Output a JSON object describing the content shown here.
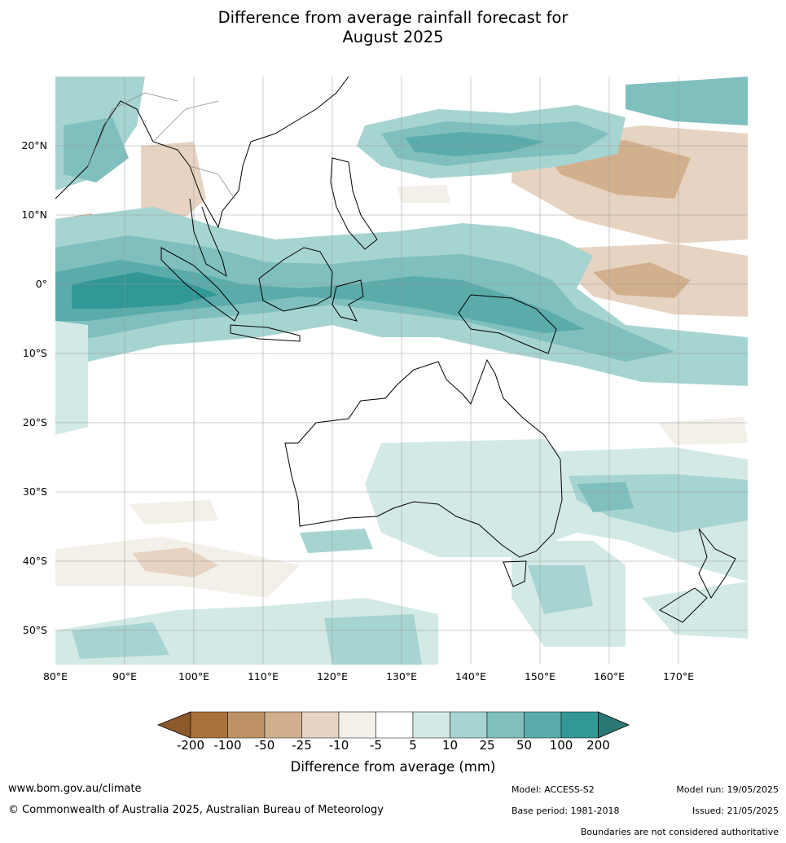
{
  "title_line1": "Difference from average rainfall forecast for",
  "title_line2": "August 2025",
  "lat_ticks": [
    "20°N",
    "10°N",
    "0°",
    "10°S",
    "20°S",
    "30°S",
    "40°S",
    "50°S"
  ],
  "lon_ticks": [
    "80°E",
    "90°E",
    "100°E",
    "110°E",
    "120°E",
    "130°E",
    "140°E",
    "150°E",
    "160°E",
    "170°E"
  ],
  "legend": {
    "title": "Difference from average (mm)",
    "labels": [
      "-200",
      "-100",
      "-50",
      "-25",
      "-10",
      "-5",
      "5",
      "10",
      "25",
      "50",
      "100",
      "200"
    ],
    "colors": [
      "#a8733a",
      "#be9266",
      "#d2b08e",
      "#e6d3c1",
      "#f3efe9",
      "#ffffff",
      "#d3e9e6",
      "#a6d4d1",
      "#7fbfbd",
      "#5aacab",
      "#319896"
    ],
    "under_color": "#8c5a2b",
    "over_color": "#2a7876"
  },
  "palette": {
    "coast": "#000000",
    "border": "#888888",
    "grid": "#999999"
  },
  "footer": {
    "website": "www.bom.gov.au/climate",
    "copyright": "© Commonwealth of Australia 2025, Australian Bureau of Meteorology",
    "model": "Model: ACCESS-S2",
    "base_period": "Base period: 1981-2018",
    "model_run": "Model run: 19/05/2025",
    "issued": "Issued: 21/05/2025",
    "disclaimer": "Boundaries are not considered authoritative"
  }
}
